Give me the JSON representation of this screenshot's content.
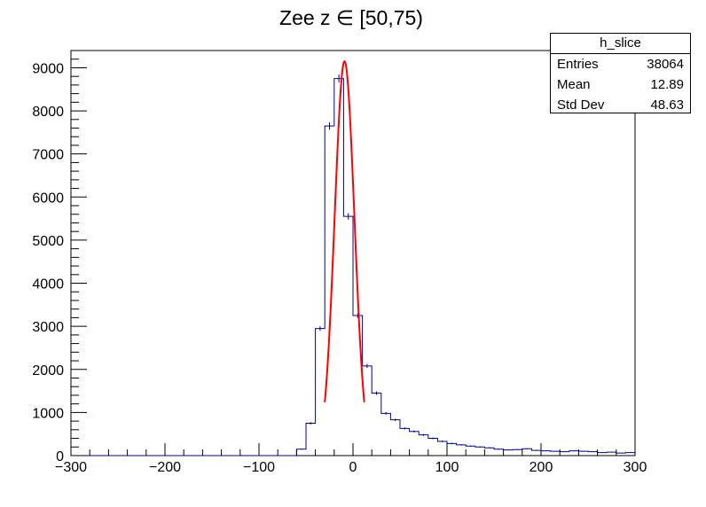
{
  "chart_data": {
    "type": "bar",
    "title": "Zee z ∈ [50,75)",
    "xlabel": "",
    "ylabel": "",
    "xlim": [
      -300,
      300
    ],
    "ylim": [
      0,
      9400
    ],
    "bin_width": 10,
    "xticks": [
      "−300",
      "−200",
      "−100",
      "0",
      "100",
      "200",
      "300"
    ],
    "yticks": [
      "0",
      "1000",
      "2000",
      "3000",
      "4000",
      "5000",
      "6000",
      "7000",
      "8000",
      "9000"
    ],
    "series": [
      {
        "kind": "histogram",
        "color": "#000099",
        "x": [
          -60,
          -50,
          -40,
          -30,
          -20,
          -10,
          0,
          10,
          20,
          30,
          40,
          50,
          60,
          70,
          80,
          90,
          100,
          110,
          120,
          130,
          140,
          150,
          160,
          170,
          180,
          190,
          200,
          210,
          220,
          230,
          240,
          250,
          260,
          270,
          280,
          290
        ],
        "values": [
          150,
          750,
          2950,
          7650,
          8750,
          5550,
          3250,
          2080,
          1450,
          980,
          830,
          630,
          560,
          480,
          400,
          330,
          280,
          250,
          220,
          200,
          180,
          150,
          130,
          140,
          160,
          120,
          110,
          100,
          90,
          110,
          100,
          90,
          70,
          80,
          60,
          70
        ]
      },
      {
        "kind": "fit",
        "color": "#ff0000",
        "function": "gaussian",
        "amplitude": 9150,
        "mean": -9,
        "sigma": 10.5,
        "range": [
          -30,
          12
        ]
      }
    ]
  },
  "stats": {
    "name": "h_slice",
    "rows": [
      {
        "label": "Entries",
        "value": "38064"
      },
      {
        "label": "Mean",
        "value": "12.89"
      },
      {
        "label": "Std Dev",
        "value": "48.63"
      }
    ]
  }
}
